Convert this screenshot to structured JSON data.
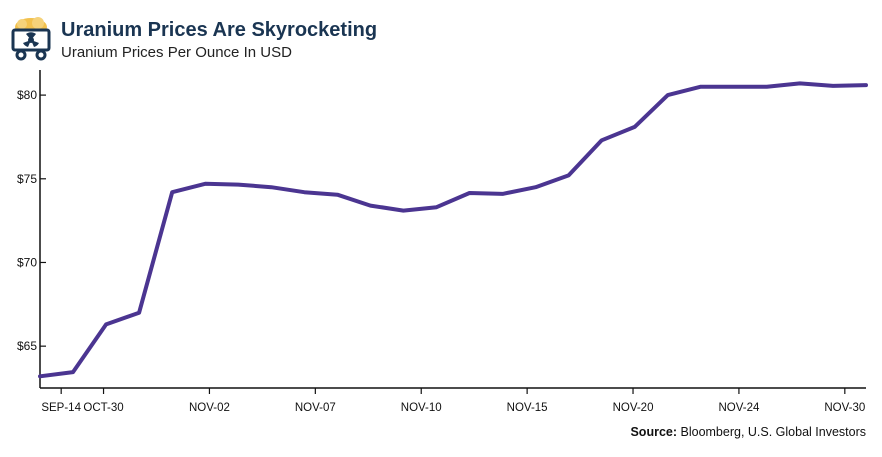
{
  "header": {
    "title": "Uranium Prices Are Skyrocketing",
    "subtitle": "Uranium Prices Per Ounce In USD"
  },
  "source": {
    "label": "Source:",
    "text": "Bloomberg, U.S. Global Investors"
  },
  "colors": {
    "line": "#4b3591",
    "title": "#1a3552",
    "logo_primary": "#f2c14e",
    "logo_dark": "#1a3552"
  },
  "icons": {
    "logo": "mining-cart-icon"
  },
  "chart_data": {
    "type": "line",
    "title": "Uranium Prices Are Skyrocketing",
    "subtitle": "Uranium Prices Per Ounce In USD",
    "ylim": [
      62.5,
      81.5
    ],
    "y_ticks": [
      65,
      70,
      75,
      80
    ],
    "y_tick_labels": [
      "$65",
      "$70",
      "$75",
      "$80"
    ],
    "x_tick_labels": [
      "SEP-14",
      "OCT-30",
      "NOV-02",
      "NOV-07",
      "NOV-10",
      "NOV-15",
      "NOV-20",
      "NOV-24",
      "NOV-30"
    ],
    "x_tick_index": [
      1,
      3,
      8,
      13,
      18,
      23,
      28,
      33,
      38
    ],
    "grid": false,
    "series": [
      {
        "values": [
          63.2,
          63.45,
          66.3,
          67.0,
          74.2,
          74.7,
          74.65,
          74.5,
          74.2,
          74.05,
          73.4,
          73.1,
          73.3,
          74.15,
          74.1,
          74.5,
          75.2,
          77.3,
          78.1,
          80.0,
          80.5,
          80.5,
          80.5,
          80.7,
          80.55,
          80.6
        ]
      }
    ]
  }
}
